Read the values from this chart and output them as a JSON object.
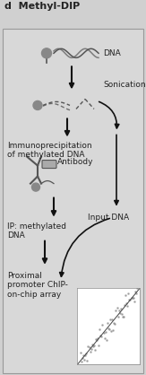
{
  "title": "d  Methyl-DIP",
  "bg_color": "#d0d0d0",
  "panel_color": "#d8d8d8",
  "outer_bg": "#b0b0b0",
  "text_color": "#222222",
  "arrow_color": "#111111",
  "gray_dark": "#555555",
  "gray_med": "#888888",
  "gray_light": "#aaaaaa",
  "labels": {
    "dna": "DNA",
    "sonication": "Sonication",
    "immunoprecip": "Immunoprecipitation\nof methylated DNA",
    "antibody": "Antibody",
    "ip_methylated": "IP: methylated\nDNA",
    "input_dna": "Input DNA",
    "proximal": "Proximal\npromoter ChIP-\non-chip array"
  },
  "fontsize": 6.5,
  "title_fontsize": 8
}
